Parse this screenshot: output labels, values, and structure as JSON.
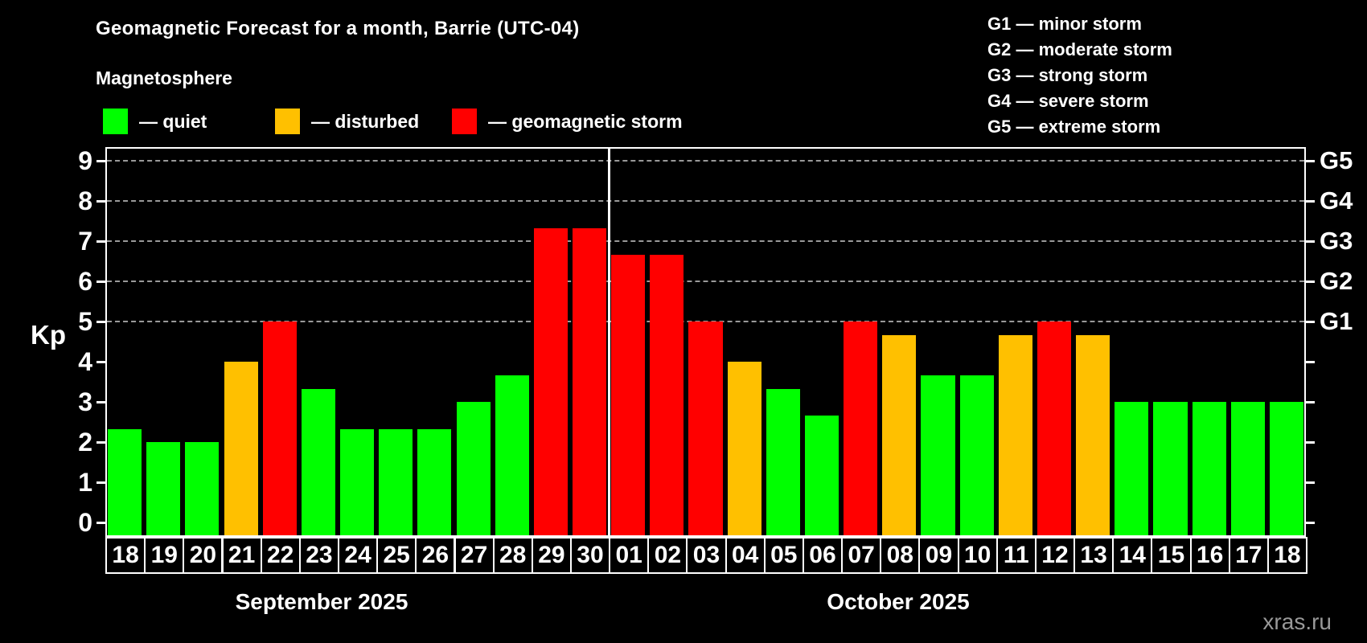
{
  "title": "Geomagnetic Forecast for a month, Barrie (UTC-04)",
  "subtitle": "Magnetosphere",
  "legend": {
    "items": [
      {
        "key": "quiet",
        "label": "— quiet",
        "color": "#00ff00"
      },
      {
        "key": "disturbed",
        "label": "— disturbed",
        "color": "#ffc000"
      },
      {
        "key": "storm",
        "label": "— geomagnetic storm",
        "color": "#ff0000"
      }
    ]
  },
  "g_legend": [
    "G1 — minor storm",
    "G2 — moderate storm",
    "G3 — strong storm",
    "G4 — severe storm",
    "G5 — extreme storm"
  ],
  "watermark": "xras.ru",
  "chart_data": {
    "type": "bar",
    "ylabel": "Kp",
    "ylim": [
      0,
      9
    ],
    "y_ticks": [
      0,
      1,
      2,
      3,
      4,
      5,
      6,
      7,
      8,
      9
    ],
    "gridlines_at_kp": [
      5,
      6,
      7,
      8,
      9
    ],
    "grid_style": "dashed",
    "legend_position": "top",
    "right_axis_labels": [
      {
        "text": "G1",
        "kp": 5
      },
      {
        "text": "G2",
        "kp": 6
      },
      {
        "text": "G3",
        "kp": 7
      },
      {
        "text": "G4",
        "kp": 8
      },
      {
        "text": "G5",
        "kp": 9
      }
    ],
    "status_colors": {
      "quiet": "#00ff00",
      "disturbed": "#ffc000",
      "storm": "#ff0000"
    },
    "series": [
      {
        "month": "September 2025",
        "days": [
          "18",
          "19",
          "20",
          "21",
          "22",
          "23",
          "24",
          "25",
          "26",
          "27",
          "28",
          "29",
          "30"
        ],
        "values": [
          2.33,
          2,
          2,
          4,
          5,
          3.33,
          2.33,
          2.33,
          2.33,
          3,
          3.67,
          7.33,
          7.33
        ],
        "status": [
          "quiet",
          "quiet",
          "quiet",
          "disturbed",
          "storm",
          "quiet",
          "quiet",
          "quiet",
          "quiet",
          "quiet",
          "quiet",
          "storm",
          "storm"
        ]
      },
      {
        "month": "October 2025",
        "days": [
          "01",
          "02",
          "03",
          "04",
          "05",
          "06",
          "07",
          "08",
          "09",
          "10",
          "11",
          "12",
          "13",
          "14",
          "15",
          "16",
          "17",
          "18"
        ],
        "values": [
          6.67,
          6.67,
          5,
          4,
          3.33,
          2.67,
          5,
          4.67,
          3.67,
          3.67,
          4.67,
          5,
          4.67,
          3,
          3,
          3,
          3,
          3
        ],
        "status": [
          "storm",
          "storm",
          "storm",
          "disturbed",
          "quiet",
          "quiet",
          "storm",
          "disturbed",
          "quiet",
          "quiet",
          "disturbed",
          "storm",
          "disturbed",
          "quiet",
          "quiet",
          "quiet",
          "quiet",
          "quiet"
        ]
      }
    ]
  }
}
